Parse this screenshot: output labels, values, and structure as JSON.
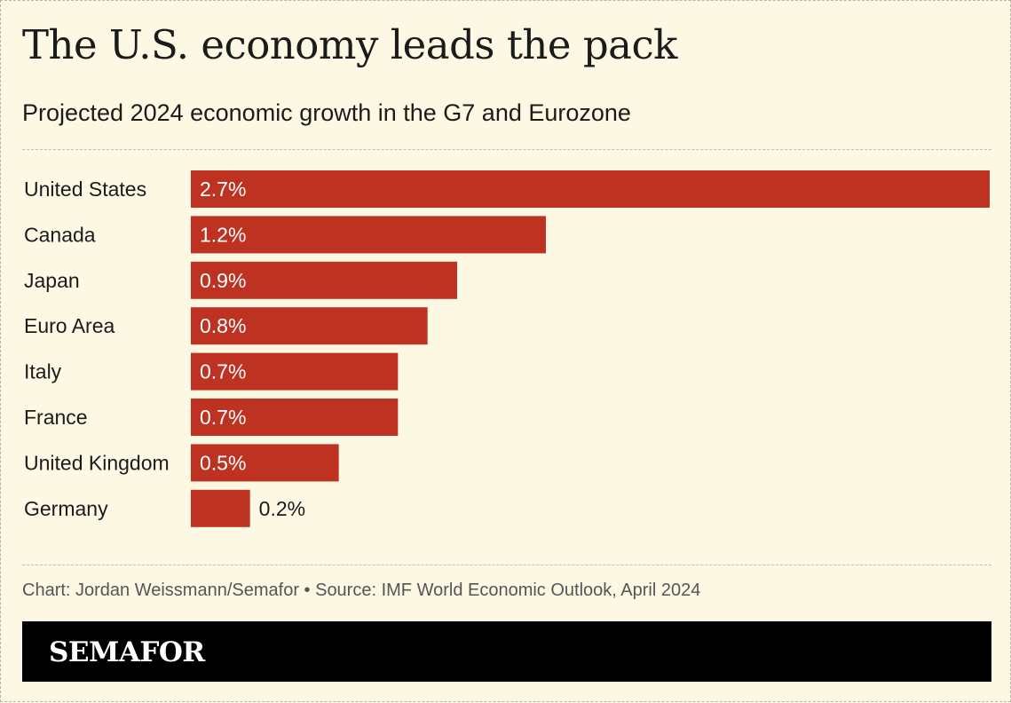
{
  "header": {
    "title": "The U.S. economy leads the pack",
    "subtitle": "Projected 2024 economic growth in the G7 and Eurozone"
  },
  "chart_data": {
    "type": "bar",
    "orientation": "horizontal",
    "categories": [
      "United States",
      "Canada",
      "Japan",
      "Euro Area",
      "Italy",
      "France",
      "United Kingdom",
      "Germany"
    ],
    "values": [
      2.7,
      1.2,
      0.9,
      0.8,
      0.7,
      0.7,
      0.5,
      0.2
    ],
    "value_labels": [
      "2.7%",
      "1.2%",
      "0.9%",
      "0.8%",
      "0.7%",
      "0.7%",
      "0.5%",
      "0.2%"
    ],
    "unit": "%",
    "xlim": [
      0,
      2.7
    ],
    "grid": false,
    "legend": "none",
    "bar_color": "#be3222"
  },
  "footer": {
    "credit": "Chart: Jordan Weissmann/Semafor • Source: IMF World Economic Outlook, April 2024",
    "brand": "SEMAFOR"
  },
  "colors": {
    "background": "#fdf8e4",
    "bar": "#be3222",
    "brand_bar": "#000000"
  }
}
